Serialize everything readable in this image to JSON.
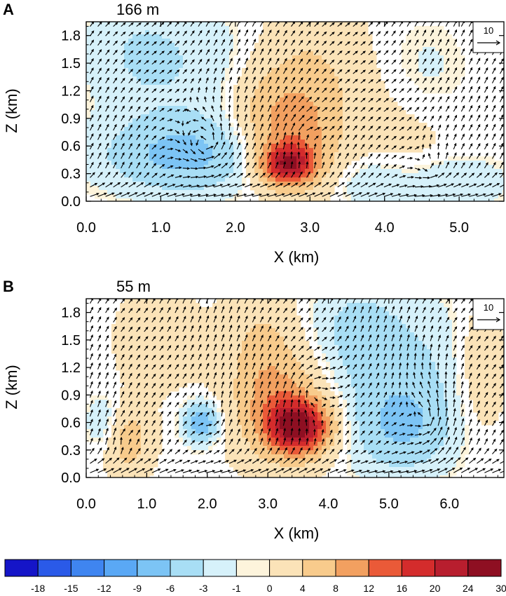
{
  "chart_data": [
    {
      "type": "heatmap",
      "panel_label": "A",
      "title": "166 m",
      "xlabel": "X (km)",
      "ylabel": "Z (km)",
      "xlim": [
        0.0,
        5.6
      ],
      "ylim": [
        0.0,
        1.95
      ],
      "xticks": [
        "0.0",
        "1.0",
        "2.0",
        "3.0",
        "4.0",
        "5.0"
      ],
      "yticks": [
        "0.0",
        "0.3",
        "0.6",
        "0.9",
        "1.2",
        "1.5",
        "1.8"
      ],
      "reference_vector": "10",
      "anomalies": [
        {
          "x": 1.3,
          "z": 0.5,
          "value": -7,
          "sx": 0.75,
          "sz": 0.28
        },
        {
          "x": 0.7,
          "z": 1.6,
          "value": -3,
          "sx": 0.5,
          "sz": 0.45
        },
        {
          "x": 1.7,
          "z": 1.4,
          "value": -2,
          "sx": 0.6,
          "sz": 0.5
        },
        {
          "x": 3.8,
          "z": 0.2,
          "value": -3,
          "sx": 0.35,
          "sz": 0.2
        },
        {
          "x": 4.9,
          "z": 0.2,
          "value": -3,
          "sx": 0.5,
          "sz": 0.2
        },
        {
          "x": 4.5,
          "z": 1.3,
          "value": -2,
          "sx": 0.45,
          "sz": 0.45
        },
        {
          "x": 2.7,
          "z": 0.4,
          "value": 20,
          "sx": 0.25,
          "sz": 0.15
        },
        {
          "x": 2.8,
          "z": 0.7,
          "value": 8,
          "sx": 0.4,
          "sz": 0.4
        },
        {
          "x": 3.0,
          "z": 1.35,
          "value": 4,
          "sx": 0.5,
          "sz": 0.55
        },
        {
          "x": 2.3,
          "z": 1.0,
          "value": 3,
          "sx": 0.35,
          "sz": 0.35
        },
        {
          "x": 4.3,
          "z": 0.8,
          "value": 2,
          "sx": 0.5,
          "sz": 0.5
        }
      ],
      "vortices": [
        {
          "x": 1.6,
          "z": 0.6,
          "strength": 1.2,
          "radius": 0.55,
          "sense": 1
        },
        {
          "x": 2.9,
          "z": 0.7,
          "strength": 0.8,
          "radius": 0.45,
          "sense": -1
        },
        {
          "x": 4.6,
          "z": 0.35,
          "strength": 0.9,
          "radius": 0.4,
          "sense": 1
        }
      ],
      "background_wind": {
        "u": 0.25,
        "w": 0.35
      }
    },
    {
      "type": "heatmap",
      "panel_label": "B",
      "title": "55 m",
      "xlabel": "X (km)",
      "ylabel": "Z (km)",
      "xlim": [
        0.0,
        6.9
      ],
      "ylim": [
        0.0,
        1.95
      ],
      "xticks": [
        "0.0",
        "1.0",
        "2.0",
        "3.0",
        "4.0",
        "5.0",
        "6.0"
      ],
      "yticks": [
        "0.0",
        "0.3",
        "0.6",
        "0.9",
        "1.2",
        "1.5",
        "1.8"
      ],
      "reference_vector": "10",
      "anomalies": [
        {
          "x": 3.5,
          "z": 0.55,
          "value": 24,
          "sx": 0.35,
          "sz": 0.2
        },
        {
          "x": 3.2,
          "z": 0.8,
          "value": 8,
          "sx": 0.5,
          "sz": 0.4
        },
        {
          "x": 2.9,
          "z": 1.4,
          "value": 4,
          "sx": 0.4,
          "sz": 0.5
        },
        {
          "x": 0.7,
          "z": 0.4,
          "value": 6,
          "sx": 0.25,
          "sz": 0.25
        },
        {
          "x": 1.9,
          "z": 0.6,
          "value": -9,
          "sx": 0.2,
          "sz": 0.15
        },
        {
          "x": 0.3,
          "z": 0.6,
          "value": -3,
          "sx": 0.2,
          "sz": 0.2
        },
        {
          "x": 5.2,
          "z": 0.55,
          "value": -6,
          "sx": 0.6,
          "sz": 0.35
        },
        {
          "x": 5.3,
          "z": 1.3,
          "value": -3,
          "sx": 0.8,
          "sz": 0.5
        },
        {
          "x": 4.4,
          "z": 1.6,
          "value": -3,
          "sx": 0.5,
          "sz": 0.4
        },
        {
          "x": 6.5,
          "z": 1.2,
          "value": 3,
          "sx": 0.3,
          "sz": 0.5
        },
        {
          "x": 1.2,
          "z": 1.5,
          "value": 2,
          "sx": 0.5,
          "sz": 0.4
        }
      ],
      "vortices": [
        {
          "x": 2.1,
          "z": 0.6,
          "strength": 1.0,
          "radius": 0.3,
          "sense": 1
        },
        {
          "x": 0.6,
          "z": 0.4,
          "strength": 0.7,
          "radius": 0.3,
          "sense": -1
        },
        {
          "x": 3.7,
          "z": 0.9,
          "strength": 0.8,
          "radius": 0.5,
          "sense": -1
        },
        {
          "x": 5.6,
          "z": 0.6,
          "strength": 1.0,
          "radius": 0.6,
          "sense": 1
        }
      ],
      "background_wind": {
        "u": 0.2,
        "w": 0.4
      }
    }
  ],
  "colorbar": {
    "colors": [
      "#1515c8",
      "#2a5ae8",
      "#3f85f0",
      "#5aa8f5",
      "#7cc4f5",
      "#a8def5",
      "#d6f1fa",
      "#fdf4dc",
      "#fbe3b8",
      "#f8cb8c",
      "#f2a060",
      "#ea5a38",
      "#d42c2c",
      "#b81e2e",
      "#8e0f22"
    ],
    "ticks": [
      "-18",
      "-15",
      "-12",
      "-9",
      "-6",
      "-3",
      "-1",
      "0",
      "4",
      "8",
      "12",
      "16",
      "20",
      "24",
      "30"
    ],
    "levels": [
      -18,
      -15,
      -12,
      -9,
      -6,
      -3,
      -1,
      0,
      4,
      8,
      12,
      16,
      20,
      24,
      30
    ]
  }
}
